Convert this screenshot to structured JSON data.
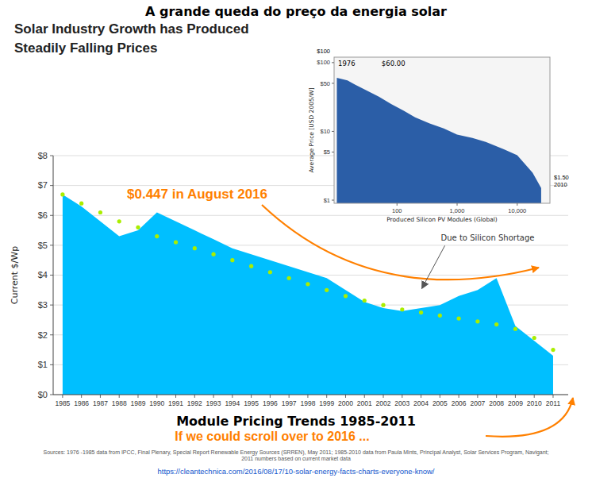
{
  "chart_data": [
    {
      "type": "area",
      "title": "A grande queda do preço da energia solar",
      "subtitle": [
        "Solar Industry Growth has Produced",
        "Steadily Falling Prices"
      ],
      "x_label": "Module Pricing Trends 1985-2011",
      "y_label": "Current $/Wp",
      "x": [
        1985,
        1986,
        1987,
        1988,
        1989,
        1990,
        1991,
        1992,
        1993,
        1994,
        1995,
        1996,
        1997,
        1998,
        1999,
        2000,
        2001,
        2002,
        2003,
        2004,
        2005,
        2006,
        2007,
        2008,
        2009,
        2010,
        2011
      ],
      "series": [
        {
          "type": "area",
          "color": "#00BFFF",
          "values": [
            6.7,
            6.3,
            5.8,
            5.3,
            5.5,
            6.1,
            5.8,
            5.5,
            5.2,
            4.9,
            4.7,
            4.5,
            4.3,
            4.1,
            3.9,
            3.5,
            3.1,
            2.9,
            2.8,
            2.9,
            3.0,
            3.3,
            3.5,
            3.9,
            2.3,
            1.8,
            1.3
          ]
        },
        {
          "type": "scatter",
          "marker": "circle",
          "color": "#AAEE00",
          "values": [
            6.7,
            6.4,
            6.1,
            5.8,
            5.6,
            5.3,
            5.1,
            4.9,
            4.7,
            4.5,
            4.3,
            4.1,
            3.9,
            3.7,
            3.5,
            3.3,
            3.15,
            3.0,
            2.85,
            2.75,
            2.65,
            2.55,
            2.45,
            2.35,
            2.2,
            1.9,
            1.5
          ]
        }
      ],
      "xlim": [
        1984.5,
        2011.8
      ],
      "xticks": [
        1985,
        1986,
        1987,
        1988,
        1989,
        1990,
        1991,
        1992,
        1993,
        1994,
        1995,
        1996,
        1997,
        1998,
        1999,
        2000,
        2001,
        2002,
        2003,
        2004,
        2005,
        2006,
        2007,
        2008,
        2009,
        2010,
        2011
      ],
      "ylim": [
        0,
        8
      ],
      "yticks": [
        {
          "value": 0,
          "label": "$0"
        },
        {
          "value": 1,
          "label": "$1"
        },
        {
          "value": 2,
          "label": "$2"
        },
        {
          "value": 3,
          "label": "$3"
        },
        {
          "value": 4,
          "label": "$4"
        },
        {
          "value": 5,
          "label": "$5"
        },
        {
          "value": 6,
          "label": "$6"
        },
        {
          "value": 7,
          "label": "$7"
        },
        {
          "value": 8,
          "label": "$8"
        }
      ],
      "grid": true,
      "annotations": [
        {
          "text": "$0.447 in August 2016",
          "color": "#FF8000"
        },
        {
          "text": "Due to Silicon Shortage",
          "x": 2004.0,
          "y": 3.5
        },
        {
          "text": "If we could scroll over to 2016 ...",
          "color": "#FF8000"
        }
      ],
      "source": "Sources: 1976 -1985 data from IPCC, Final Plenary, Special Report Renewable Energy Sources (SRREN), May 2011; 1985-2010 data from Paula Mints, Principal Analyst, Solar Services Program, Navigant;\n2011 numbers based on current market data",
      "url": "https://cleantechnica.com/2016/08/17/10-solar-energy-facts-charts-everyone-know/"
    },
    {
      "type": "area",
      "log": true,
      "x_label": "Produced Silicon PV Modules (Global)",
      "y_label": "Average Price [USD 2005/W]",
      "x": [
        10,
        15,
        20,
        30,
        50,
        80,
        130,
        200,
        350,
        600,
        1000,
        1800,
        3000,
        6000,
        10000,
        18000,
        25000
      ],
      "values": [
        60,
        55,
        48,
        40,
        32,
        25,
        20,
        16,
        13,
        11,
        9,
        8,
        7,
        5.5,
        4.5,
        2.5,
        1.5
      ],
      "color": "#2B5EA7",
      "xlim": [
        9,
        35000
      ],
      "xticks": [
        100,
        {
          "value": 1000,
          "label": "1,000"
        },
        {
          "value": 10000,
          "label": "10,000"
        }
      ],
      "ylim": [
        0.9,
        120
      ],
      "yticks": [
        {
          "value": 1,
          "label": "$1"
        },
        {
          "value": 5,
          "label": "$5"
        },
        {
          "value": 10,
          "label": "$10"
        },
        {
          "value": 50,
          "label": "$50"
        },
        {
          "value": 100,
          "label": "$100"
        }
      ],
      "annotations": [
        {
          "text": "1976"
        },
        {
          "text": "$60.00"
        },
        {
          "text": "$1.50\n2010"
        },
        {
          "text": "$100"
        }
      ]
    }
  ]
}
